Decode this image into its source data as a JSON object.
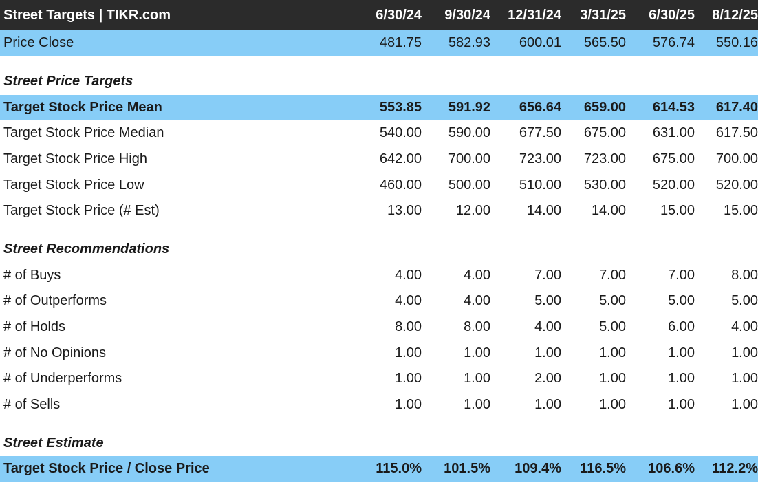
{
  "header": {
    "title": "Street Targets | TIKR.com",
    "dates": [
      "6/30/24",
      "9/30/24",
      "12/31/24",
      "3/31/25",
      "6/30/25",
      "8/12/25"
    ]
  },
  "price_close": {
    "label": "Price Close",
    "values": [
      "481.75",
      "582.93",
      "600.01",
      "565.50",
      "576.74",
      "550.16"
    ]
  },
  "section_targets": "Street Price Targets",
  "target_rows": [
    {
      "label": "Target Stock Price Mean",
      "values": [
        "553.85",
        "591.92",
        "656.64",
        "659.00",
        "614.53",
        "617.40"
      ]
    },
    {
      "label": "Target Stock Price Median",
      "values": [
        "540.00",
        "590.00",
        "677.50",
        "675.00",
        "631.00",
        "617.50"
      ]
    },
    {
      "label": "Target Stock Price High",
      "values": [
        "642.00",
        "700.00",
        "723.00",
        "723.00",
        "675.00",
        "700.00"
      ]
    },
    {
      "label": "Target Stock Price Low",
      "values": [
        "460.00",
        "500.00",
        "510.00",
        "530.00",
        "520.00",
        "520.00"
      ]
    },
    {
      "label": "Target Stock Price (# Est)",
      "values": [
        "13.00",
        "12.00",
        "14.00",
        "14.00",
        "15.00",
        "15.00"
      ]
    }
  ],
  "section_recommendations": "Street Recommendations",
  "recommendation_rows": [
    {
      "label": "# of Buys",
      "values": [
        "4.00",
        "4.00",
        "7.00",
        "7.00",
        "7.00",
        "8.00"
      ]
    },
    {
      "label": "# of Outperforms",
      "values": [
        "4.00",
        "4.00",
        "5.00",
        "5.00",
        "5.00",
        "5.00"
      ]
    },
    {
      "label": "# of Holds",
      "values": [
        "8.00",
        "8.00",
        "4.00",
        "5.00",
        "6.00",
        "4.00"
      ]
    },
    {
      "label": "# of No Opinions",
      "values": [
        "1.00",
        "1.00",
        "1.00",
        "1.00",
        "1.00",
        "1.00"
      ]
    },
    {
      "label": "# of Underperforms",
      "values": [
        "1.00",
        "1.00",
        "2.00",
        "1.00",
        "1.00",
        "1.00"
      ]
    },
    {
      "label": "# of Sells",
      "values": [
        "1.00",
        "1.00",
        "1.00",
        "1.00",
        "1.00",
        "1.00"
      ]
    }
  ],
  "section_estimate": "Street Estimate",
  "estimate_row": {
    "label": "Target Stock Price / Close Price",
    "values": [
      "115.0%",
      "101.5%",
      "109.4%",
      "116.5%",
      "106.6%",
      "112.2%"
    ]
  },
  "colors": {
    "header_bg": "#2b2b2b",
    "highlight_bg": "#87cdf7"
  }
}
